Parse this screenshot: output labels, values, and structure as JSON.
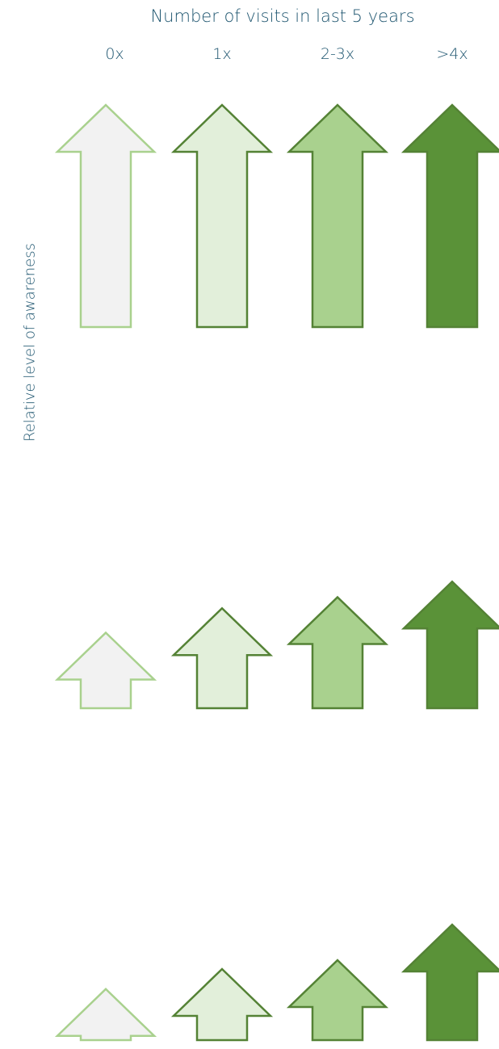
{
  "title": "Number of visits in last 5 years",
  "y_axis_label": "Relative level of awareness",
  "columns": [
    {
      "label": "0x",
      "fill": "#f2f2f2",
      "stroke": "#a9d18e"
    },
    {
      "label": "1x",
      "fill": "#e2efda",
      "stroke": "#548235"
    },
    {
      "label": "2-3x",
      "fill": "#a9d18e",
      "stroke": "#548235"
    },
    {
      "label": ">4x",
      "fill": "#5a9238",
      "stroke": "#548235"
    }
  ],
  "rows": [
    {
      "levels": [
        1,
        1,
        1,
        1
      ]
    },
    {
      "levels": [
        0.34,
        0.45,
        0.5,
        0.57
      ]
    },
    {
      "levels": [
        0.23,
        0.32,
        0.36,
        0.52
      ]
    }
  ]
}
